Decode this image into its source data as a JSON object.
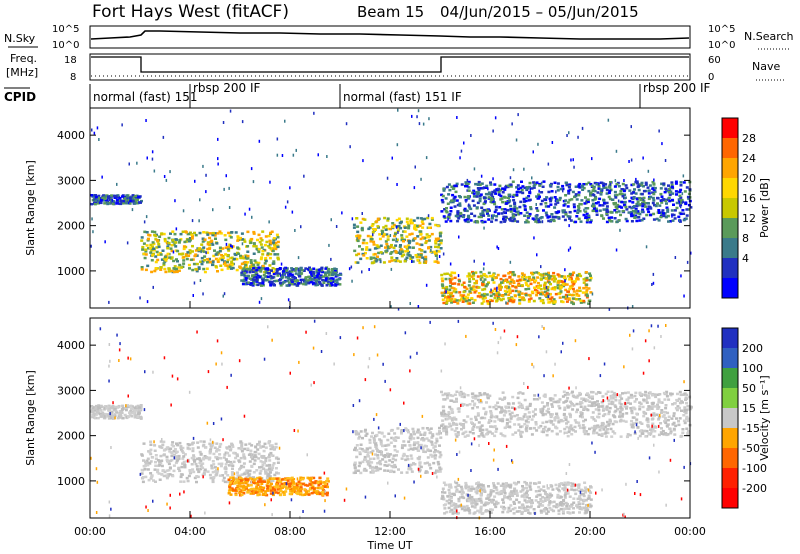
{
  "title": {
    "radar": "Fort Hays West (fitACF)",
    "beam": "Beam 15",
    "date_range": "04/Jun/2015 – 05/Jun/2015"
  },
  "top_panels": {
    "nsky": {
      "label": "N.Sky",
      "ticks": [
        "10^5",
        "10^0"
      ],
      "right_label": "N.Search",
      "right_ticks": [
        "10^5",
        "10^0"
      ]
    },
    "freq": {
      "label": "Freq.",
      "unit": "[MHz]",
      "ticks": [
        "18",
        "8"
      ],
      "right_label": "Nave",
      "right_ticks": [
        "60",
        "0"
      ]
    },
    "cpid": {
      "label": "CPID",
      "segments": [
        {
          "label": "normal (fast) 151",
          "start": 0.0
        },
        {
          "label": "rbsp 200 IF",
          "start": 4.0
        },
        {
          "label": "normal (fast) 151 IF",
          "start": 10.0
        },
        {
          "label": "rbsp 200 IF",
          "start": 22.0
        }
      ]
    }
  },
  "chart_data": [
    {
      "type": "heatmap",
      "name": "power",
      "ylabel": "Slant Range [km]",
      "ylim": [
        180,
        4600
      ],
      "yticks": [
        1000,
        2000,
        3000,
        4000
      ],
      "xlim": [
        0,
        24
      ],
      "colorbar": {
        "label": "Power [dB]",
        "ticks": [
          "28",
          "24",
          "20",
          "16",
          "12",
          "8",
          "4"
        ],
        "colors": [
          "#ff0000",
          "#ff6600",
          "#ffa500",
          "#ffd700",
          "#c8c800",
          "#5a9a5a",
          "#3a7a8a",
          "#2030c0",
          "#0000ff"
        ]
      },
      "echo_bands": [
        {
          "x": [
            0,
            2
          ],
          "range": [
            2500,
            2700
          ],
          "level": "low"
        },
        {
          "x": [
            2,
            7.5
          ],
          "range": [
            1000,
            1900
          ],
          "level": "mid"
        },
        {
          "x": [
            6,
            10
          ],
          "range": [
            700,
            1100
          ],
          "level": "low"
        },
        {
          "x": [
            10.5,
            14
          ],
          "range": [
            1200,
            2200
          ],
          "level": "mid"
        },
        {
          "x": [
            14,
            24
          ],
          "range": [
            2100,
            3000
          ],
          "level": "low"
        },
        {
          "x": [
            14,
            20
          ],
          "range": [
            300,
            1000
          ],
          "level": "high"
        }
      ]
    },
    {
      "type": "heatmap",
      "name": "velocity",
      "ylabel": "Slant Range [km]",
      "xlabel": "Time UT",
      "ylim": [
        180,
        4600
      ],
      "yticks": [
        1000,
        2000,
        3000,
        4000
      ],
      "xlim": [
        0,
        24
      ],
      "xticks": [
        "00:00",
        "04:00",
        "08:00",
        "12:00",
        "16:00",
        "20:00",
        "00:00"
      ],
      "colorbar": {
        "label": "Velocity [m s⁻¹]",
        "ticks": [
          "200",
          "100",
          "50",
          "15",
          "-15",
          "-50",
          "-100",
          "-200"
        ],
        "colors": [
          "#2030c0",
          "#3060c0",
          "#40a040",
          "#80d040",
          "#c8c8c8",
          "#ffa500",
          "#ff6600",
          "#ff2000",
          "#ff0000"
        ]
      },
      "echo_bands": [
        {
          "x": [
            0,
            2
          ],
          "range": [
            2400,
            2700
          ],
          "level": "ground"
        },
        {
          "x": [
            2,
            7.5
          ],
          "range": [
            1000,
            1900
          ],
          "level": "ground"
        },
        {
          "x": [
            5.5,
            9.5
          ],
          "range": [
            700,
            1100
          ],
          "level": "negative"
        },
        {
          "x": [
            10.5,
            14
          ],
          "range": [
            1200,
            2200
          ],
          "level": "ground"
        },
        {
          "x": [
            14,
            24
          ],
          "range": [
            2000,
            3000
          ],
          "level": "ground"
        },
        {
          "x": [
            14,
            20
          ],
          "range": [
            300,
            1000
          ],
          "level": "ground"
        }
      ]
    }
  ]
}
